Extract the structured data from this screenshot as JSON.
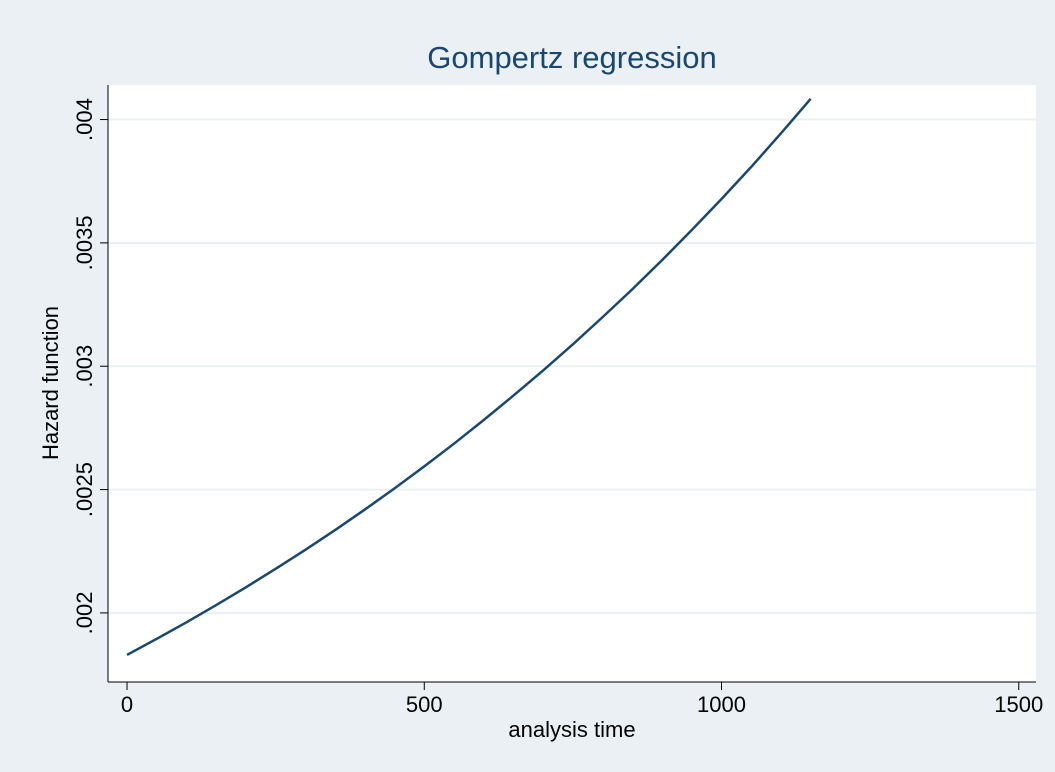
{
  "chart_data": {
    "type": "line",
    "title": "Gompertz regression",
    "xlabel": "analysis time",
    "ylabel": "Hazard function",
    "x": [
      0,
      50,
      100,
      150,
      200,
      250,
      300,
      350,
      400,
      450,
      500,
      550,
      600,
      650,
      700,
      750,
      800,
      850,
      900,
      950,
      1000,
      1050,
      1100,
      1150
    ],
    "series": [
      {
        "name": "Hazard function",
        "color": "#1a476f",
        "values": [
          0.00183,
          0.001895,
          0.001962,
          0.002032,
          0.002104,
          0.002179,
          0.002256,
          0.002336,
          0.002419,
          0.002505,
          0.002594,
          0.002686,
          0.002782,
          0.002881,
          0.002983,
          0.003089,
          0.003199,
          0.003312,
          0.00343,
          0.003552,
          0.003678,
          0.003808,
          0.003944,
          0.004084
        ]
      }
    ],
    "xlim": [
      -32,
      1529
    ],
    "xticks": [
      0,
      500,
      1000,
      1500
    ],
    "ylim": [
      0.00172,
      0.00414
    ],
    "yticks": [
      {
        "value": 0.002,
        "label": ".002"
      },
      {
        "value": 0.0025,
        "label": ".0025"
      },
      {
        "value": 0.003,
        "label": ".003"
      },
      {
        "value": 0.0035,
        "label": ".0035"
      },
      {
        "value": 0.004,
        "label": ".004"
      }
    ],
    "grid": true
  }
}
